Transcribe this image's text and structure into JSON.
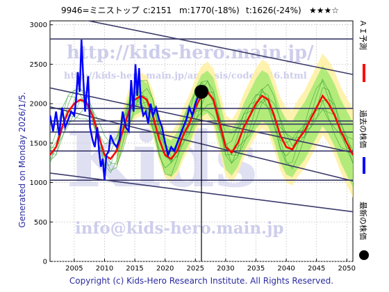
{
  "header": {
    "code_name": "9946=ミニストップ",
    "current": "c:2151",
    "mid": "m:1770(-18%)",
    "target": "t:1626(-24%)",
    "stars": "★★★☆"
  },
  "side_label": "Generated on Monday 2026/1/5.",
  "watermarks": {
    "url": "http://kids-hero.main.jp/",
    "analysis_url": "http://kids-hero.main.jp/analysis/code9946.html",
    "email": "info@kids-hero.main.jp",
    "big_text": "Kids"
  },
  "legend": {
    "ai_forecast": "ＡＩ予測",
    "past_price": "過去の株価",
    "latest_price": "最新の株価"
  },
  "copyright": "Copyright (c) Kids-Hero Research Institute. All Rights Reserved.",
  "colors": {
    "ai_forecast": "#ff0000",
    "past_price": "#0000ff",
    "latest_price": "#000000",
    "trend_lines": "#3a3a6a",
    "band_green": "#9ae86a",
    "band_yellow": "#fff0a0"
  },
  "chart_data": {
    "type": "line",
    "xlim": [
      2001,
      2051
    ],
    "ylim": [
      0,
      3050
    ],
    "x_ticks": [
      2005,
      2010,
      2015,
      2020,
      2025,
      2030,
      2035,
      2040,
      2045,
      2050
    ],
    "y_ticks": [
      0,
      500,
      1000,
      1500,
      2000,
      2500,
      3000
    ],
    "grid": true,
    "latest_point": {
      "x": 2026.0,
      "y": 2151
    },
    "past_price": {
      "x": [
        2001.0,
        2001.5,
        2002.0,
        2002.5,
        2003.0,
        2003.5,
        2004.0,
        2004.5,
        2005.0,
        2005.3,
        2005.6,
        2005.9,
        2006.2,
        2006.5,
        2006.8,
        2007.0,
        2007.3,
        2007.6,
        2008.0,
        2008.4,
        2008.8,
        2009.1,
        2009.4,
        2009.7,
        2010.0,
        2010.3,
        2010.7,
        2011.0,
        2011.5,
        2012.0,
        2012.5,
        2013.0,
        2013.5,
        2014.0,
        2014.4,
        2014.8,
        2015.1,
        2015.4,
        2015.7,
        2016.0,
        2016.4,
        2016.8,
        2017.2,
        2017.6,
        2018.0,
        2018.5,
        2019.0,
        2019.5,
        2020.0,
        2020.5,
        2021.0,
        2021.5,
        2022.0,
        2022.5,
        2023.0,
        2023.5,
        2024.0,
        2024.5,
        2025.0,
        2025.5,
        2026.0
      ],
      "y": [
        1850,
        1650,
        1900,
        1600,
        1950,
        1700,
        1800,
        1900,
        1850,
        2050,
        2400,
        2150,
        2810,
        2300,
        1900,
        2100,
        2350,
        1700,
        1550,
        1450,
        1700,
        1400,
        1200,
        1300,
        1030,
        1350,
        1400,
        1600,
        1500,
        1450,
        1550,
        1900,
        1700,
        1650,
        2300,
        1900,
        2500,
        2100,
        2450,
        2000,
        1850,
        1900,
        1750,
        2000,
        1850,
        1950,
        1800,
        1700,
        1500,
        1350,
        1450,
        1400,
        1500,
        1600,
        1700,
        1800,
        1950,
        1850,
        2000,
        2100,
        2151
      ]
    },
    "ai_forecast": {
      "x": [
        2001,
        2002,
        2003,
        2004,
        2005,
        2006,
        2007,
        2008,
        2009,
        2010,
        2011,
        2012,
        2013,
        2014,
        2015,
        2016,
        2017,
        2018,
        2019,
        2020,
        2021,
        2022,
        2023,
        2024,
        2025,
        2026,
        2027,
        2028,
        2029,
        2030,
        2031,
        2032,
        2033,
        2034,
        2035,
        2036,
        2037,
        2038,
        2039,
        2040,
        2041,
        2042,
        2043,
        2044,
        2045,
        2046,
        2047,
        2048,
        2049,
        2050,
        2051
      ],
      "y": [
        1350,
        1450,
        1700,
        1900,
        2000,
        2050,
        2020,
        1850,
        1600,
        1350,
        1300,
        1400,
        1650,
        1900,
        2050,
        2100,
        2050,
        1850,
        1550,
        1350,
        1300,
        1400,
        1600,
        1750,
        1950,
        2100,
        2150,
        2050,
        1750,
        1450,
        1380,
        1500,
        1700,
        1850,
        2000,
        2100,
        2050,
        1850,
        1600,
        1450,
        1420,
        1550,
        1650,
        1800,
        1950,
        2100,
        2000,
        1850,
        1650,
        1500,
        1350
      ]
    },
    "trend_lines": [
      {
        "x": [
          2001,
          2051
        ],
        "y": [
          2820,
          2820
        ]
      },
      {
        "x": [
          2001,
          2051
        ],
        "y": [
          3150,
          2370
        ]
      },
      {
        "x": [
          2001,
          2051
        ],
        "y": [
          2200,
          1380
        ]
      },
      {
        "x": [
          2001,
          2051
        ],
        "y": [
          1940,
          1940
        ]
      },
      {
        "x": [
          2001,
          2051
        ],
        "y": [
          1740,
          1740
        ]
      },
      {
        "x": [
          2001,
          2051
        ],
        "y": [
          1640,
          1640
        ]
      },
      {
        "x": [
          2001,
          2051
        ],
        "y": [
          1400,
          1400
        ]
      },
      {
        "x": [
          2001,
          2051
        ],
        "y": [
          1030,
          1030
        ]
      },
      {
        "x": [
          2001,
          2051
        ],
        "y": [
          1120,
          630
        ]
      },
      {
        "x": [
          2001,
          2051
        ],
        "y": [
          1780,
          1780
        ]
      },
      {
        "x": [
          2001,
          2051
        ],
        "y": [
          1960,
          1020
        ]
      }
    ]
  }
}
